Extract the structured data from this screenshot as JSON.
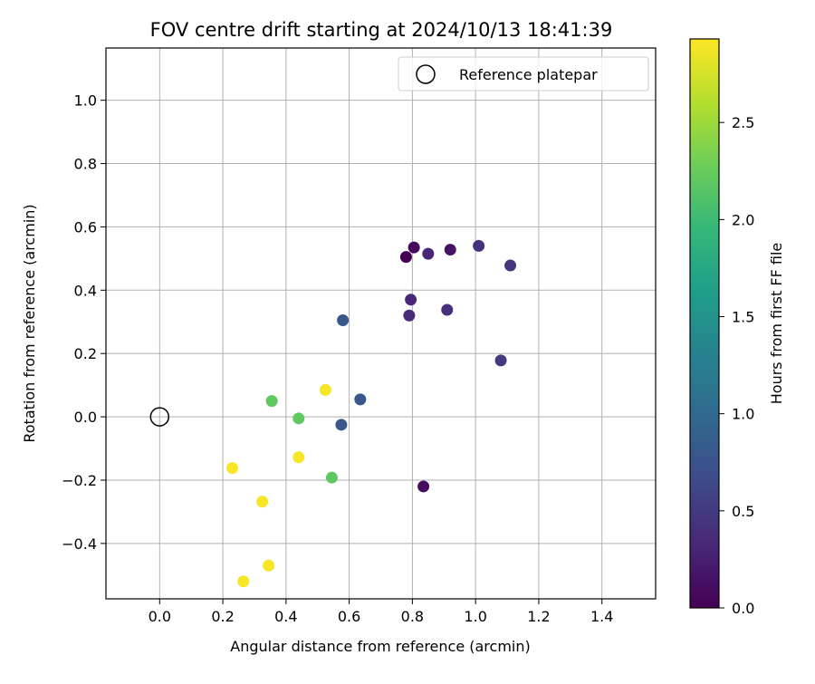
{
  "chart_data": {
    "type": "scatter",
    "title": "FOV centre drift starting at 2024/10/13 18:41:39",
    "xlabel": "Angular distance from reference (arcmin)",
    "ylabel": "Rotation from reference (arcmin)",
    "xlim": [
      -0.17,
      1.57
    ],
    "ylim": [
      -0.575,
      1.165
    ],
    "xticks": [
      "0.0",
      "0.2",
      "0.4",
      "0.6",
      "0.8",
      "1.0",
      "1.2",
      "1.4"
    ],
    "yticks": [
      "−0.4",
      "−0.2",
      "0.0",
      "0.2",
      "0.4",
      "0.6",
      "0.8",
      "1.0"
    ],
    "grid": true,
    "legend": {
      "position": "top-right",
      "entries": [
        "Reference platepar"
      ]
    },
    "reference_point": {
      "name": "Reference platepar",
      "x": 0.0,
      "y": 0.0
    },
    "colorbar": {
      "label": "Hours from first FF file",
      "range": [
        0.0,
        2.93
      ],
      "ticks": [
        "0.0",
        "0.5",
        "1.0",
        "1.5",
        "2.0",
        "2.5"
      ],
      "colormap": "viridis"
    },
    "points": [
      {
        "x": 0.78,
        "y": 0.505,
        "c": 0.0
      },
      {
        "x": 0.805,
        "y": 0.535,
        "c": 0.05
      },
      {
        "x": 0.835,
        "y": -0.22,
        "c": 0.1
      },
      {
        "x": 0.92,
        "y": 0.528,
        "c": 0.15
      },
      {
        "x": 0.85,
        "y": 0.515,
        "c": 0.3
      },
      {
        "x": 0.795,
        "y": 0.37,
        "c": 0.33
      },
      {
        "x": 0.79,
        "y": 0.32,
        "c": 0.35
      },
      {
        "x": 0.91,
        "y": 0.338,
        "c": 0.4
      },
      {
        "x": 1.01,
        "y": 0.54,
        "c": 0.42
      },
      {
        "x": 1.11,
        "y": 0.478,
        "c": 0.45
      },
      {
        "x": 1.08,
        "y": 0.178,
        "c": 0.5
      },
      {
        "x": 0.58,
        "y": 0.305,
        "c": 0.8
      },
      {
        "x": 0.635,
        "y": 0.055,
        "c": 0.8
      },
      {
        "x": 0.575,
        "y": -0.025,
        "c": 0.8
      },
      {
        "x": 0.355,
        "y": 0.05,
        "c": 2.2
      },
      {
        "x": 0.44,
        "y": -0.005,
        "c": 2.2
      },
      {
        "x": 0.545,
        "y": -0.192,
        "c": 2.2
      },
      {
        "x": 0.525,
        "y": 0.085,
        "c": 2.9
      },
      {
        "x": 0.44,
        "y": -0.128,
        "c": 2.9
      },
      {
        "x": 0.23,
        "y": -0.162,
        "c": 2.9
      },
      {
        "x": 0.325,
        "y": -0.268,
        "c": 2.9
      },
      {
        "x": 0.345,
        "y": -0.47,
        "c": 2.9
      },
      {
        "x": 0.265,
        "y": -0.52,
        "c": 2.9
      }
    ]
  }
}
